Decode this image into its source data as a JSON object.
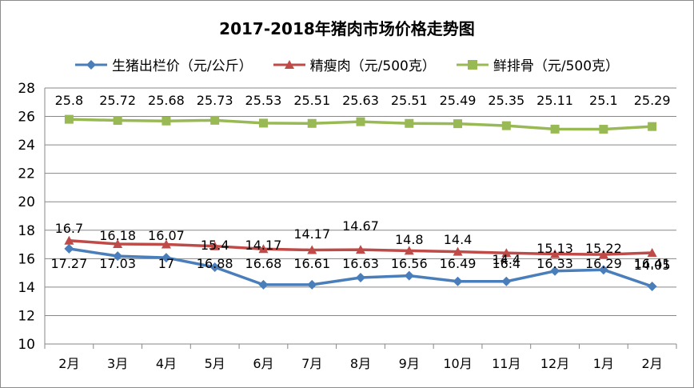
{
  "chart_data": {
    "type": "line",
    "title": "2017-2018年猪肉市场价格走势图",
    "categories": [
      "2月",
      "3月",
      "4月",
      "5月",
      "6月",
      "7月",
      "8月",
      "9月",
      "10月",
      "11月",
      "12月",
      "1月",
      "2月"
    ],
    "ylim": [
      10,
      28
    ],
    "yticks": [
      10,
      12,
      14,
      16,
      18,
      20,
      22,
      24,
      26,
      28
    ],
    "grid": true,
    "legend_position": "top",
    "series": [
      {
        "name": "生猪出栏价（元/公斤）",
        "color": "#4a7ebb",
        "marker": "diamond",
        "values": [
          16.7,
          16.18,
          16.07,
          15.4,
          14.17,
          14.17,
          14.67,
          14.8,
          14.4,
          14.4,
          15.13,
          15.22,
          14.05
        ],
        "labels": [
          "16.7",
          "16.18",
          "16.07",
          "15.4",
          "14.17",
          "14.17",
          "14.67",
          "14.8",
          "14.4",
          "14.4",
          "15.13",
          "15.22",
          "14.05"
        ]
      },
      {
        "name": "精瘦肉（元/500克）",
        "color": "#be4b48",
        "marker": "triangle",
        "values": [
          17.27,
          17.03,
          17.0,
          16.88,
          16.68,
          16.61,
          16.63,
          16.56,
          16.49,
          16.4,
          16.33,
          16.29,
          16.41
        ],
        "labels": [
          "17.27",
          "17.03",
          "17",
          "16.88",
          "16.68",
          "16.61",
          "16.63",
          "16.56",
          "16.49",
          "16.4",
          "16.33",
          "16.29",
          "16.41"
        ]
      },
      {
        "name": "鲜排骨（元/500克）",
        "color": "#98b954",
        "marker": "square",
        "values": [
          25.8,
          25.72,
          25.68,
          25.73,
          25.53,
          25.51,
          25.63,
          25.51,
          25.49,
          25.35,
          25.11,
          25.1,
          25.29
        ],
        "labels": [
          "25.8",
          "25.72",
          "25.68",
          "25.73",
          "25.53",
          "25.51",
          "25.63",
          "25.51",
          "25.49",
          "25.35",
          "25.11",
          "25.1",
          "25.29"
        ]
      }
    ]
  }
}
